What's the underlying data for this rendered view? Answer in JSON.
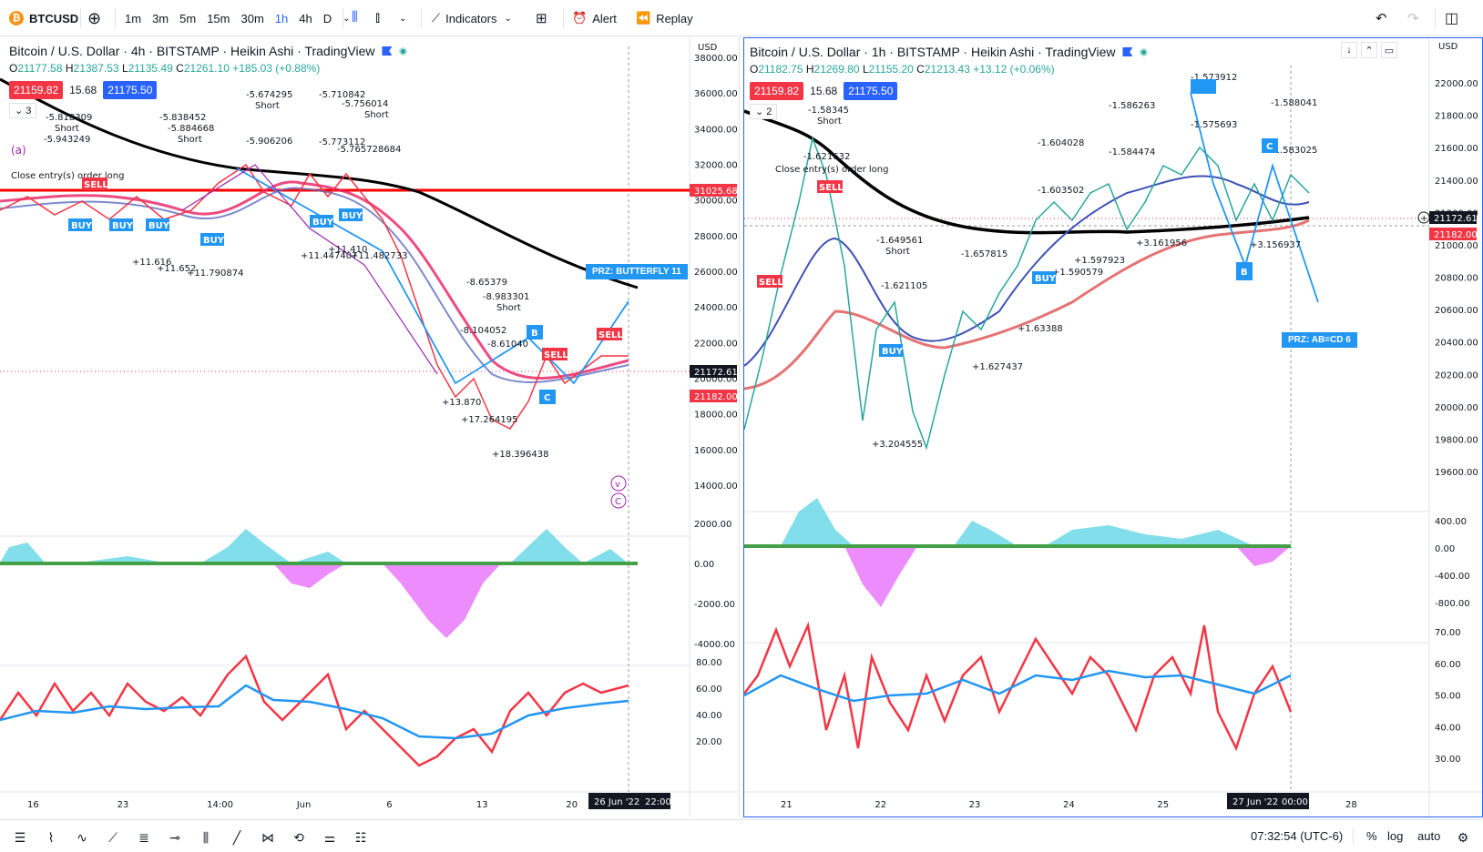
{
  "topbar": {
    "symbol": "BTCUSD",
    "timeframes": [
      "1m",
      "3m",
      "5m",
      "15m",
      "30m",
      "1h",
      "4h",
      "D"
    ],
    "active_timeframe": "1h",
    "indicators_label": "Indicators",
    "alert_label": "Alert",
    "replay_label": "Replay"
  },
  "left_chart": {
    "title": "Bitcoin / U.S. Dollar · 4h · BITSTAMP · Heikin Ashi · TradingView",
    "ohlc": {
      "o": "21177.58",
      "h": "21387.53",
      "l": "21135.49",
      "c": "21261.10",
      "chg": "+185.03 (+0.88%)"
    },
    "bid": "21159.82",
    "spread": "15.68",
    "ask": "21175.50",
    "collapse_count": "3",
    "currency": "USD",
    "price_ticks": [
      "38000.00",
      "36000.00",
      "34000.00",
      "32000.00",
      "30000.00",
      "28000.00",
      "26000.00",
      "24000.00",
      "22000.00",
      "20000.00",
      "18000.00",
      "16000.00",
      "14000.00"
    ],
    "price_tag_red": "31025.68",
    "price_tag_last": "21172.61",
    "price_tag_alt": "21182.00",
    "macd_ticks": [
      "2000.00",
      "0.00",
      "-2000.00",
      "-4000.00"
    ],
    "rsi_ticks": [
      "80.00",
      "60.00",
      "40.00",
      "20.00"
    ],
    "time_ticks": [
      "16",
      "23",
      "14:00",
      "Jun",
      "6",
      "13",
      "20",
      "Ju"
    ],
    "time_cursor": "26 Jun '22",
    "time_cursor2": "22:00",
    "prz_label": "PRZ: BUTTERFLY 11",
    "labels": [
      {
        "t": "-5.943249"
      },
      {
        "t": "Short"
      },
      {
        "t": "-5.818309"
      },
      {
        "t": "Short"
      },
      {
        "t": "-5.838452"
      },
      {
        "t": "-5.884668"
      },
      {
        "t": "Short"
      },
      {
        "t": "-5.674295"
      },
      {
        "t": "Short"
      },
      {
        "t": "-5.906206"
      },
      {
        "t": "-5.710842"
      },
      {
        "t": "-5.756014"
      },
      {
        "t": "Short"
      },
      {
        "t": "-5.773112"
      },
      {
        "t": "-5.765728684"
      },
      {
        "t": "Close entry(s) order long"
      },
      {
        "t": "+11.616"
      },
      {
        "t": "+11.652"
      },
      {
        "t": "+11.790874"
      },
      {
        "t": "+11.447407"
      },
      {
        "t": "+11.410"
      },
      {
        "t": "+11.482733"
      },
      {
        "t": "-8.65379"
      },
      {
        "t": "-8.983301"
      },
      {
        "t": "Short"
      },
      {
        "t": "-8.104052"
      },
      {
        "t": "-8.61040"
      },
      {
        "t": "+13.870"
      },
      {
        "t": "+17.264195"
      },
      {
        "t": "+18.396438"
      }
    ]
  },
  "right_chart": {
    "title": "Bitcoin / U.S. Dollar · 1h · BITSTAMP · Heikin Ashi · TradingView",
    "ohlc": {
      "o": "21182.75",
      "h": "21269.80",
      "l": "21155.20",
      "c": "21213.43",
      "chg": "+13.12 (+0.06%)"
    },
    "bid": "21159.82",
    "spread": "15.68",
    "ask": "21175.50",
    "collapse_count": "2",
    "currency": "USD",
    "price_ticks": [
      "22000.00",
      "21800.00",
      "21600.00",
      "21400.00",
      "21200.00",
      "21000.00",
      "20800.00",
      "20600.00",
      "20400.00",
      "20200.00",
      "20000.00",
      "19800.00",
      "19600.00"
    ],
    "price_tag_last": "21172.61",
    "price_tag_alt": "21182.00",
    "macd_ticks": [
      "400.00",
      "0.00",
      "-400.00",
      "-800.00"
    ],
    "rsi_ticks": [
      "70.00",
      "60.00",
      "50.00",
      "40.00",
      "30.00"
    ],
    "time_ticks": [
      "21",
      "22",
      "23",
      "24",
      "25",
      "26",
      "28"
    ],
    "time_cursor": "27 Jun '22",
    "time_cursor2": "00:00",
    "prz_label": "PRZ: AB=CD 6",
    "labels": [
      {
        "t": "-1.58345"
      },
      {
        "t": "Short"
      },
      {
        "t": "-1.621632"
      },
      {
        "t": "-1.649561"
      },
      {
        "t": "Short"
      },
      {
        "t": "-1.621105"
      },
      {
        "t": "-1.657815"
      },
      {
        "t": "-1.604028"
      },
      {
        "t": "-1.603502"
      },
      {
        "t": "-1.586263"
      },
      {
        "t": "-1.584474"
      },
      {
        "t": "-1.573912"
      },
      {
        "t": "-1.575693"
      },
      {
        "t": "-1.588041"
      },
      {
        "t": "-1.583025"
      },
      {
        "t": "+3.204555"
      },
      {
        "t": "+1.627437"
      },
      {
        "t": "+1.63388"
      },
      {
        "t": "+1.590579"
      },
      {
        "t": "+1.597923"
      },
      {
        "t": "+3.161956"
      },
      {
        "t": "+3.156937"
      },
      {
        "t": "Close entry(s) order long"
      }
    ]
  },
  "bottombar": {
    "clock": "07:32:54 (UTC-6)",
    "percent": "%",
    "log": "log",
    "auto": "auto"
  },
  "colors": {
    "up": "#26a69a",
    "down": "#f23645",
    "accent": "#2962ff",
    "prz": "#2196f3",
    "ma200": "#000000",
    "hline": "#ff0000"
  }
}
